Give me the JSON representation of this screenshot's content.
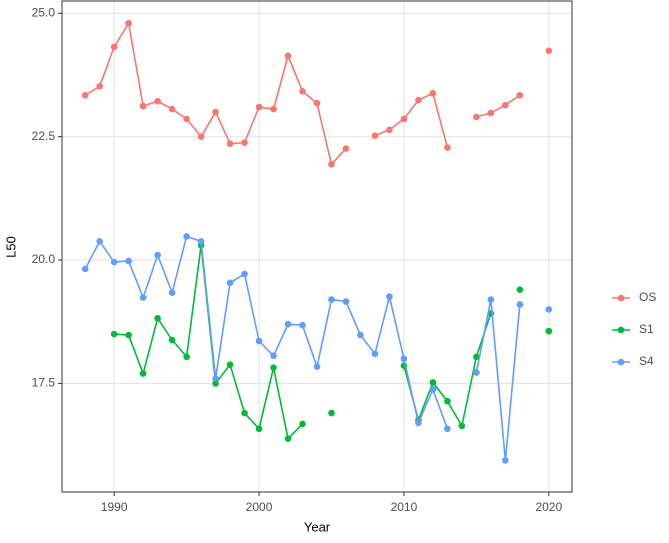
{
  "chart_data": {
    "type": "line",
    "x_label": "Year",
    "y_label": "L50",
    "x": [
      1988,
      1989,
      1990,
      1991,
      1992,
      1993,
      1994,
      1995,
      1996,
      1997,
      1998,
      1999,
      2000,
      2001,
      2002,
      2003,
      2004,
      2005,
      2006,
      2007,
      2008,
      2009,
      2010,
      2011,
      2012,
      2013,
      2014,
      2015,
      2016,
      2017,
      2018,
      2019,
      2020
    ],
    "series": [
      {
        "name": "OS",
        "color": "#F8766D",
        "values": [
          23.34,
          23.52,
          24.32,
          24.8,
          23.12,
          23.22,
          23.06,
          22.86,
          22.5,
          23.0,
          22.36,
          22.38,
          23.1,
          23.06,
          24.14,
          23.42,
          23.18,
          21.94,
          22.26,
          null,
          22.52,
          22.64,
          22.86,
          23.24,
          23.38,
          22.28,
          null,
          22.9,
          22.98,
          23.14,
          23.34,
          null,
          24.24
        ]
      },
      {
        "name": "S1",
        "color": "#00BA38",
        "values": [
          null,
          null,
          18.5,
          18.48,
          17.7,
          18.82,
          18.38,
          18.04,
          20.3,
          17.5,
          17.88,
          16.9,
          16.58,
          17.82,
          16.38,
          16.68,
          null,
          16.9,
          null,
          null,
          null,
          null,
          17.86,
          16.76,
          17.52,
          17.14,
          16.64,
          18.04,
          18.92,
          null,
          19.4,
          null,
          18.56
        ]
      },
      {
        "name": "S4",
        "color": "#619CFF",
        "values": [
          19.82,
          20.38,
          19.96,
          19.98,
          19.24,
          20.1,
          19.34,
          20.48,
          20.38,
          17.6,
          19.54,
          19.72,
          18.36,
          18.06,
          18.7,
          18.68,
          17.84,
          19.2,
          19.16,
          18.48,
          18.1,
          19.26,
          18.0,
          16.7,
          17.38,
          16.58,
          null,
          17.72,
          19.2,
          15.94,
          19.1,
          null,
          19.0
        ]
      }
    ],
    "xlim": [
      1986.4,
      2021.6
    ],
    "xticks": [
      1990,
      2000,
      2010,
      2020
    ],
    "ylim": [
      15.3,
      25.25
    ],
    "yticks": [
      17.5,
      {
        "value": 20,
        "label": "20.0"
      },
      22.5,
      {
        "value": 25,
        "label": "25.0"
      }
    ],
    "grid": true,
    "legend": "right"
  }
}
